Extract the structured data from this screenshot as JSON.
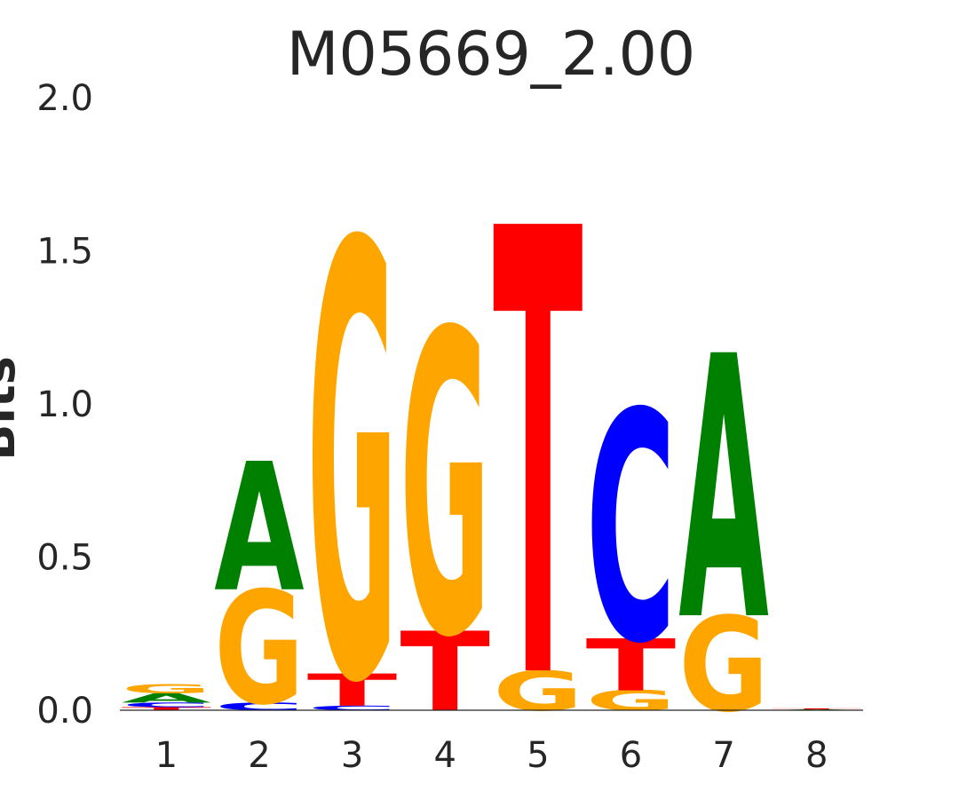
{
  "chart_data": {
    "type": "sequence-logo",
    "title": "M05669_2.00",
    "ylabel": "Bits",
    "xlabel": "",
    "ylim": [
      0,
      2.0
    ],
    "yticks": [
      "0.0",
      "0.5",
      "1.0",
      "1.5",
      "2.0"
    ],
    "categories": [
      "1",
      "2",
      "3",
      "4",
      "5",
      "6",
      "7",
      "8"
    ],
    "colors": {
      "A": "#008000",
      "C": "#0000ff",
      "G": "#ffa500",
      "T": "#ff0000"
    },
    "positions": [
      {
        "pos": "1",
        "stack": [
          {
            "letter": "T",
            "bits": 0.01
          },
          {
            "letter": "C",
            "bits": 0.015
          },
          {
            "letter": "A",
            "bits": 0.03
          },
          {
            "letter": "G",
            "bits": 0.03
          }
        ]
      },
      {
        "pos": "2",
        "stack": [
          {
            "letter": "C",
            "bits": 0.025
          },
          {
            "letter": "G",
            "bits": 0.37
          },
          {
            "letter": "A",
            "bits": 0.42
          }
        ]
      },
      {
        "pos": "3",
        "stack": [
          {
            "letter": "C",
            "bits": 0.015
          },
          {
            "letter": "T",
            "bits": 0.105
          },
          {
            "letter": "G",
            "bits": 1.42
          }
        ]
      },
      {
        "pos": "4",
        "stack": [
          {
            "letter": "T",
            "bits": 0.26
          },
          {
            "letter": "G",
            "bits": 0.99
          }
        ]
      },
      {
        "pos": "5",
        "stack": [
          {
            "letter": "G",
            "bits": 0.13
          },
          {
            "letter": "T",
            "bits": 1.46
          }
        ]
      },
      {
        "pos": "6",
        "stack": [
          {
            "letter": "G",
            "bits": 0.065
          },
          {
            "letter": "T",
            "bits": 0.17
          },
          {
            "letter": "C",
            "bits": 0.75
          }
        ]
      },
      {
        "pos": "7",
        "stack": [
          {
            "letter": "G",
            "bits": 0.31
          },
          {
            "letter": "A",
            "bits": 0.86
          }
        ]
      },
      {
        "pos": "8",
        "stack": [
          {
            "letter": "A",
            "bits": 0.003
          },
          {
            "letter": "T",
            "bits": 0.003
          }
        ]
      }
    ]
  }
}
